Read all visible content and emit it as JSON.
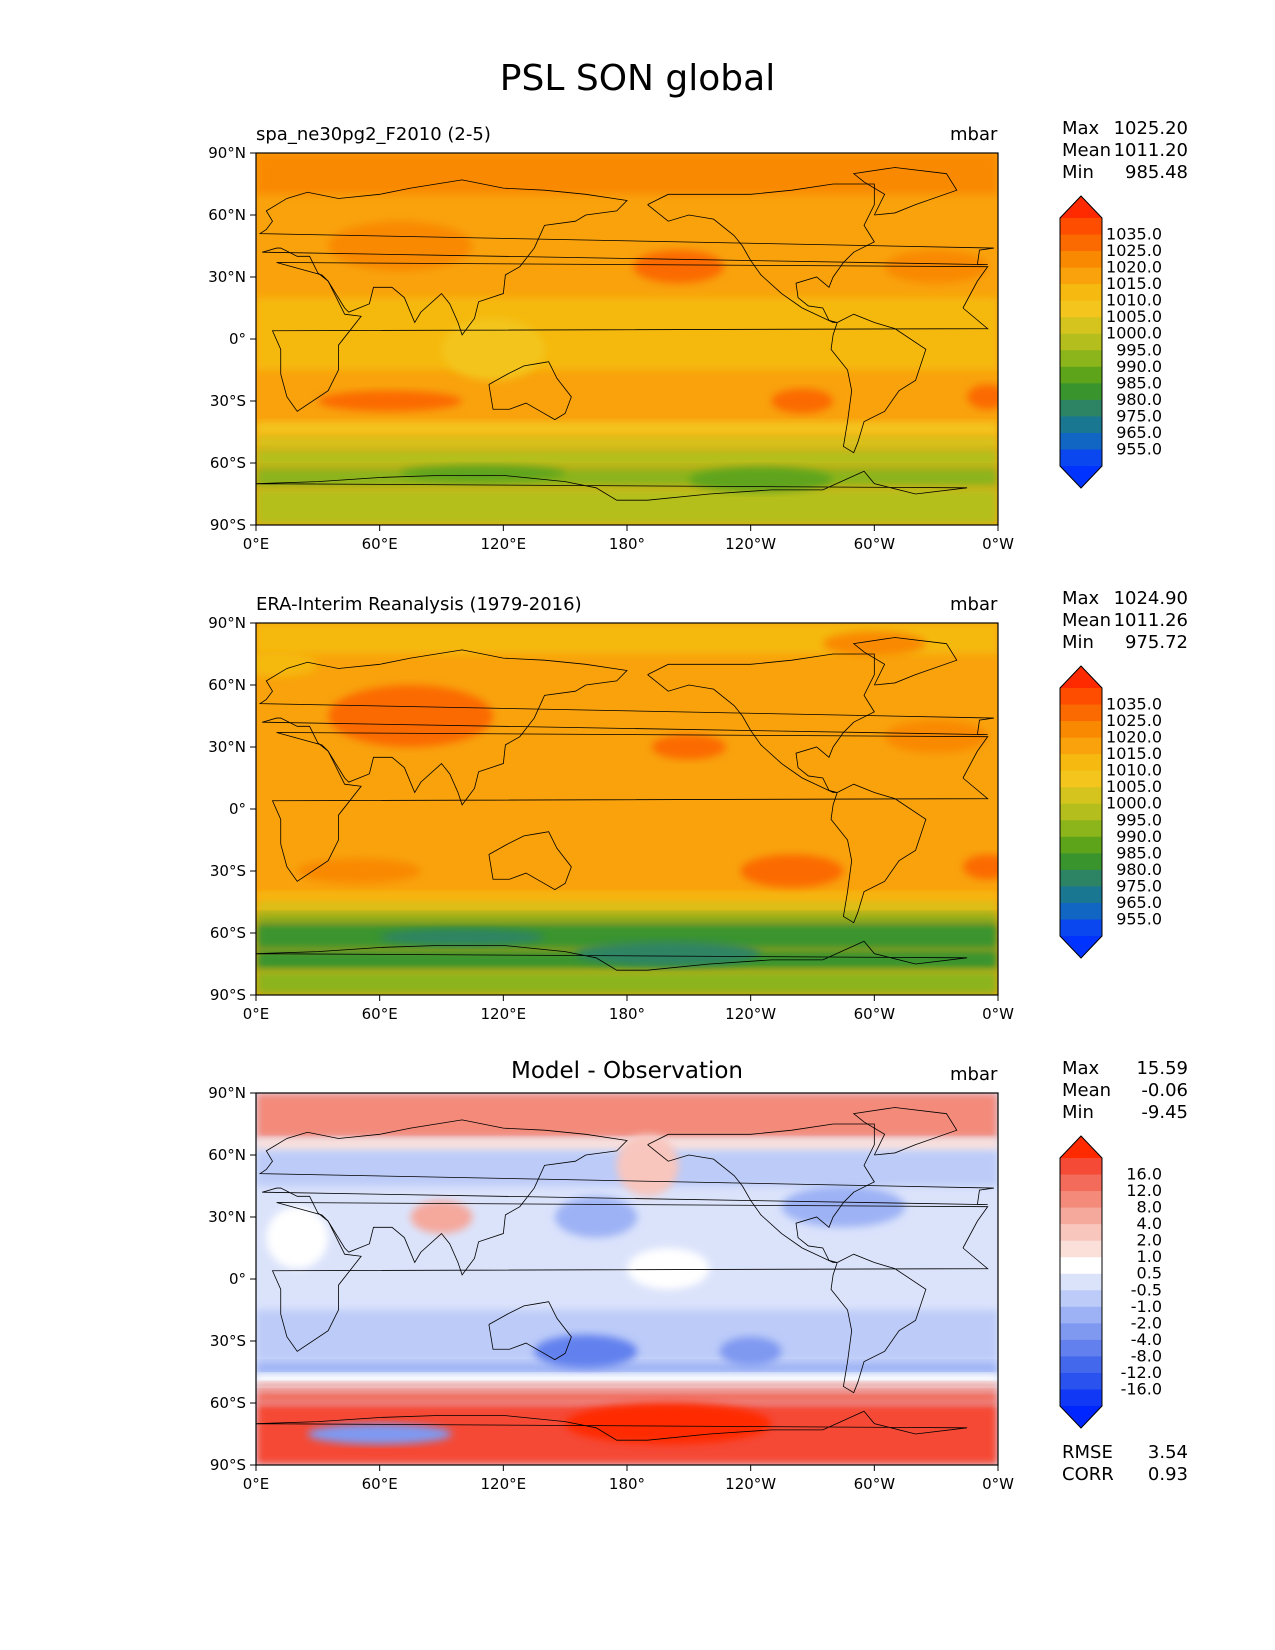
{
  "title": "PSL SON global",
  "panels": [
    {
      "id": "test",
      "title_left": "spa_ne30pg2_F2010 (2-5)",
      "title_center": "",
      "units": "mbar",
      "stats": [
        {
          "label": "Max",
          "value": "1025.20"
        },
        {
          "label": "Mean",
          "value": "1011.20"
        },
        {
          "label": "Min",
          "value": "985.48"
        }
      ],
      "colorbar_labels": [
        "1035.0",
        "1025.0",
        "1020.0",
        "1015.0",
        "1010.0",
        "1005.0",
        "1000.0",
        "995.0",
        "990.0",
        "985.0",
        "980.0",
        "975.0",
        "965.0",
        "955.0"
      ],
      "colorbar_colors": [
        "#ff2a00",
        "#ff4d00",
        "#fb6a00",
        "#f98900",
        "#f9a20c",
        "#f5b90f",
        "#f3c51d",
        "#d6c41e",
        "#b4bf1e",
        "#8cb41b",
        "#5ea41a",
        "#3a942e",
        "#2d8464",
        "#1a7792",
        "#1166c4",
        "#0b47ef",
        "#0033ff"
      ],
      "extra_stats": []
    },
    {
      "id": "reference",
      "title_left": "ERA-Interim Reanalysis (1979-2016)",
      "title_center": "",
      "units": "mbar",
      "stats": [
        {
          "label": "Max",
          "value": "1024.90"
        },
        {
          "label": "Mean",
          "value": "1011.26"
        },
        {
          "label": "Min",
          "value": "975.72"
        }
      ],
      "colorbar_labels": [
        "1035.0",
        "1025.0",
        "1020.0",
        "1015.0",
        "1010.0",
        "1005.0",
        "1000.0",
        "995.0",
        "990.0",
        "985.0",
        "980.0",
        "975.0",
        "965.0",
        "955.0"
      ],
      "colorbar_colors": [
        "#ff2a00",
        "#ff4d00",
        "#fb6a00",
        "#f98900",
        "#f9a20c",
        "#f5b90f",
        "#f3c51d",
        "#d6c41e",
        "#b4bf1e",
        "#8cb41b",
        "#5ea41a",
        "#3a942e",
        "#2d8464",
        "#1a7792",
        "#1166c4",
        "#0b47ef",
        "#0033ff"
      ],
      "extra_stats": []
    },
    {
      "id": "difference",
      "title_left": "",
      "title_center": "Model - Observation",
      "units": "mbar",
      "stats": [
        {
          "label": "Max",
          "value": "15.59"
        },
        {
          "label": "Mean",
          "value": "-0.06"
        },
        {
          "label": "Min",
          "value": "-9.45"
        }
      ],
      "colorbar_labels": [
        "16.0",
        "12.0",
        "8.0",
        "4.0",
        "2.0",
        "1.0",
        "0.5",
        "-0.5",
        "-1.0",
        "-2.0",
        "-4.0",
        "-8.0",
        "-12.0",
        "-16.0"
      ],
      "colorbar_colors": [
        "#ff2a00",
        "#f54a36",
        "#f36b5a",
        "#f38a7a",
        "#f5a89c",
        "#f8c6bd",
        "#fbe0da",
        "#ffffff",
        "#dbe3fb",
        "#bccbf8",
        "#9db2f5",
        "#7f99f1",
        "#6281ee",
        "#4468ec",
        "#2a52ee",
        "#1038f5",
        "#0026ff"
      ],
      "extra_stats": [
        {
          "label": "RMSE",
          "value": "3.54"
        },
        {
          "label": "CORR",
          "value": "0.93"
        }
      ]
    }
  ],
  "x_ticks": [
    "0°E",
    "60°E",
    "120°E",
    "180°",
    "120°W",
    "60°W",
    "0°W"
  ],
  "y_ticks": [
    "90°N",
    "60°N",
    "30°N",
    "0°",
    "30°S",
    "60°S",
    "90°S"
  ],
  "map_fields": [
    {
      "background": "#f9a20c",
      "bands": [
        {
          "lat_top": 90,
          "lat_bottom": 70,
          "color": "#f98900"
        },
        {
          "lat_top": 20,
          "lat_bottom": -15,
          "color": "#f5b90f"
        },
        {
          "lat_top": -40,
          "lat_bottom": -47,
          "color": "#f3c51d"
        },
        {
          "lat_top": -47,
          "lat_bottom": -53,
          "color": "#d6c41e"
        },
        {
          "lat_top": -53,
          "lat_bottom": -62,
          "color": "#b4bf1e"
        },
        {
          "lat_top": -62,
          "lat_bottom": -72,
          "color": "#8cb41b"
        },
        {
          "lat_top": -72,
          "lat_bottom": -90,
          "color": "#b4bf1e"
        }
      ],
      "blobs": [
        {
          "lon": 70,
          "lat": 45,
          "rlon": 35,
          "rlat": 12,
          "color": "#f98900"
        },
        {
          "lon": 205,
          "lat": 35,
          "rlon": 22,
          "rlat": 8,
          "color": "#fb6a00"
        },
        {
          "lon": 330,
          "lat": 35,
          "rlon": 25,
          "rlat": 8,
          "color": "#f98900"
        },
        {
          "lon": 65,
          "lat": -30,
          "rlon": 35,
          "rlat": 5,
          "color": "#fb6a00"
        },
        {
          "lon": 265,
          "lat": -30,
          "rlon": 15,
          "rlat": 6,
          "color": "#fb6a00"
        },
        {
          "lon": 355,
          "lat": -28,
          "rlon": 10,
          "rlat": 6,
          "color": "#fb6a00"
        },
        {
          "lon": 110,
          "lat": -65,
          "rlon": 40,
          "rlat": 4,
          "color": "#5ea41a"
        },
        {
          "lon": 245,
          "lat": -68,
          "rlon": 35,
          "rlat": 6,
          "color": "#5ea41a"
        },
        {
          "lon": 115,
          "lat": -5,
          "rlon": 25,
          "rlat": 15,
          "color": "#f3c51d"
        }
      ]
    },
    {
      "background": "#f9a20c",
      "bands": [
        {
          "lat_top": 90,
          "lat_bottom": 75,
          "color": "#f5b90f"
        },
        {
          "lat_top": -40,
          "lat_bottom": -45,
          "color": "#f5b90f"
        },
        {
          "lat_top": -45,
          "lat_bottom": -50,
          "color": "#d6c41e"
        },
        {
          "lat_top": -50,
          "lat_bottom": -55,
          "color": "#8cb41b"
        },
        {
          "lat_top": -55,
          "lat_bottom": -68,
          "color": "#3a942e"
        },
        {
          "lat_top": -68,
          "lat_bottom": -78,
          "color": "#3a942e"
        },
        {
          "lat_top": -78,
          "lat_bottom": -90,
          "color": "#8cb41b"
        }
      ],
      "blobs": [
        {
          "lon": 75,
          "lat": 45,
          "rlon": 40,
          "rlat": 15,
          "color": "#fb6a00"
        },
        {
          "lon": 210,
          "lat": 30,
          "rlon": 18,
          "rlat": 6,
          "color": "#fb6a00"
        },
        {
          "lon": 330,
          "lat": 35,
          "rlon": 25,
          "rlat": 8,
          "color": "#f98900"
        },
        {
          "lon": 50,
          "lat": -30,
          "rlon": 30,
          "rlat": 6,
          "color": "#f98900"
        },
        {
          "lon": 260,
          "lat": -30,
          "rlon": 25,
          "rlat": 8,
          "color": "#fb6a00"
        },
        {
          "lon": 355,
          "lat": -28,
          "rlon": 12,
          "rlat": 6,
          "color": "#fb6a00"
        },
        {
          "lon": 100,
          "lat": -62,
          "rlon": 40,
          "rlat": 4,
          "color": "#2d8464"
        },
        {
          "lon": 200,
          "lat": -70,
          "rlon": 45,
          "rlat": 6,
          "color": "#2d8464"
        },
        {
          "lon": 10,
          "lat": 70,
          "rlon": 20,
          "rlat": 6,
          "color": "#f5b90f"
        },
        {
          "lon": 300,
          "lat": 80,
          "rlon": 25,
          "rlat": 6,
          "color": "#f98900"
        }
      ]
    },
    {
      "background": "#dbe3fb",
      "bands": [
        {
          "lat_top": 90,
          "lat_bottom": 68,
          "color": "#f38a7a"
        },
        {
          "lat_top": 68,
          "lat_bottom": 62,
          "color": "#fbe0da"
        },
        {
          "lat_top": 62,
          "lat_bottom": 45,
          "color": "#bccbf8"
        },
        {
          "lat_top": 0,
          "lat_bottom": -15,
          "color": "#dbe3fb"
        },
        {
          "lat_top": -15,
          "lat_bottom": -40,
          "color": "#bccbf8"
        },
        {
          "lat_top": -40,
          "lat_bottom": -46,
          "color": "#9db2f5"
        },
        {
          "lat_top": -46,
          "lat_bottom": -50,
          "color": "#ffffff"
        },
        {
          "lat_top": -50,
          "lat_bottom": -54,
          "color": "#f5a89c"
        },
        {
          "lat_top": -54,
          "lat_bottom": -60,
          "color": "#f36b5a"
        },
        {
          "lat_top": -60,
          "lat_bottom": -90,
          "color": "#f54a36"
        }
      ],
      "blobs": [
        {
          "lon": 190,
          "lat": 55,
          "rlon": 15,
          "rlat": 15,
          "color": "#f8c6bd"
        },
        {
          "lon": 165,
          "lat": 30,
          "rlon": 20,
          "rlat": 10,
          "color": "#9db2f5"
        },
        {
          "lon": 285,
          "lat": 35,
          "rlon": 30,
          "rlat": 10,
          "color": "#9db2f5"
        },
        {
          "lon": 90,
          "lat": 30,
          "rlon": 15,
          "rlat": 8,
          "color": "#f5a89c"
        },
        {
          "lon": 160,
          "lat": -35,
          "rlon": 25,
          "rlat": 8,
          "color": "#6281ee"
        },
        {
          "lon": 240,
          "lat": -35,
          "rlon": 15,
          "rlat": 7,
          "color": "#7f99f1"
        },
        {
          "lon": 60,
          "lat": -75,
          "rlon": 35,
          "rlat": 5,
          "color": "#7f99f1"
        },
        {
          "lon": 200,
          "lat": 5,
          "rlon": 20,
          "rlat": 10,
          "color": "#ffffff"
        },
        {
          "lon": 200,
          "lat": -70,
          "rlon": 50,
          "rlat": 10,
          "color": "#ff2a00"
        },
        {
          "lon": 20,
          "lat": 20,
          "rlon": 15,
          "rlat": 15,
          "color": "#ffffff"
        }
      ]
    }
  ]
}
